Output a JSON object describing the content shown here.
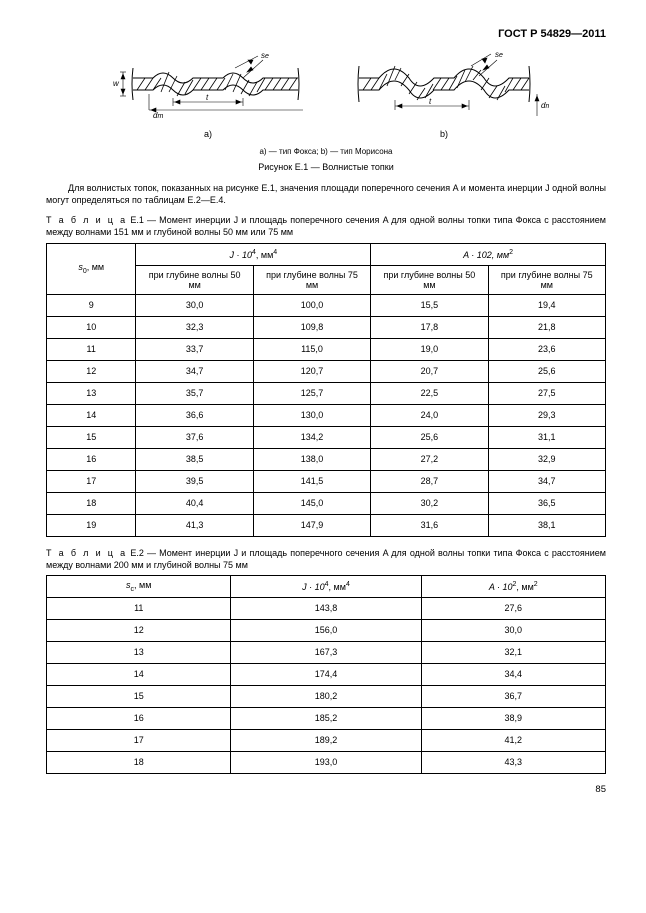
{
  "header": {
    "code": "ГОСТ Р 54829—2011"
  },
  "figure": {
    "a_label": "a)",
    "b_label": "b)",
    "note": "a) — тип Фокса; b) — тип Морисона",
    "title": "Рисунок Е.1 — Волнистые топки",
    "sym_w": "w",
    "sym_dm": "d",
    "sym_dm_sub": "m",
    "sym_t": "t",
    "sym_se": "s",
    "sym_se_sub": "e"
  },
  "para1": "Для волнистых топок, показанных на рисунке Е.1, значения площади поперечного сечения A и момента инерции J одной волны могут определяться по таблицам Е.2—Е.4.",
  "table1": {
    "caption_lead": "Т а б л и ц а",
    "caption": "  Е.1 — Момент инерции J и площадь поперечного сечения A для одной волны топки типа Фокса с расстоянием между волнами 151 мм и глубиной волны 50 мм или 75 мм",
    "h_s0": "s",
    "h_s0_sub": "0",
    "h_s0_unit": ", мм",
    "h_J": "J · 10",
    "h_J_sup": "4",
    "h_J_unit": ", мм",
    "h_J_unit_sup": "4",
    "h_A": "A · 102, мм",
    "h_A_sup": "2",
    "sub50": "при глубине волны 50 мм",
    "sub75": "при глубине волны 75 мм",
    "rows": [
      {
        "s": "9",
        "j50": "30,0",
        "j75": "100,0",
        "a50": "15,5",
        "a75": "19,4"
      },
      {
        "s": "10",
        "j50": "32,3",
        "j75": "109,8",
        "a50": "17,8",
        "a75": "21,8"
      },
      {
        "s": "11",
        "j50": "33,7",
        "j75": "115,0",
        "a50": "19,0",
        "a75": "23,6"
      },
      {
        "s": "12",
        "j50": "34,7",
        "j75": "120,7",
        "a50": "20,7",
        "a75": "25,6"
      },
      {
        "s": "13",
        "j50": "35,7",
        "j75": "125,7",
        "a50": "22,5",
        "a75": "27,5"
      },
      {
        "s": "14",
        "j50": "36,6",
        "j75": "130,0",
        "a50": "24,0",
        "a75": "29,3"
      },
      {
        "s": "15",
        "j50": "37,6",
        "j75": "134,2",
        "a50": "25,6",
        "a75": "31,1"
      },
      {
        "s": "16",
        "j50": "38,5",
        "j75": "138,0",
        "a50": "27,2",
        "a75": "32,9"
      },
      {
        "s": "17",
        "j50": "39,5",
        "j75": "141,5",
        "a50": "28,7",
        "a75": "34,7"
      },
      {
        "s": "18",
        "j50": "40,4",
        "j75": "145,0",
        "a50": "30,2",
        "a75": "36,5"
      },
      {
        "s": "19",
        "j50": "41,3",
        "j75": "147,9",
        "a50": "31,6",
        "a75": "38,1"
      }
    ]
  },
  "table2": {
    "caption_lead": "Т а б л и ц а",
    "caption": "  Е.2 — Момент инерции J и площадь поперечного сечения A для одной волны топки типа Фокса с расстоянием между волнами 200 мм и глубиной волны 75 мм",
    "h_s": "s",
    "h_s_sub": "c",
    "h_s_unit": ", мм",
    "h_J": "J · 10",
    "h_J_sup": "4",
    "h_J_unit": ", мм",
    "h_J_unit_sup": "4",
    "h_A": "A · 10",
    "h_A_sup1": "2",
    "h_A_unit": ", мм",
    "h_A_sup2": "2",
    "rows": [
      {
        "s": "11",
        "j": "143,8",
        "a": "27,6"
      },
      {
        "s": "12",
        "j": "156,0",
        "a": "30,0"
      },
      {
        "s": "13",
        "j": "167,3",
        "a": "32,1"
      },
      {
        "s": "14",
        "j": "174,4",
        "a": "34,4"
      },
      {
        "s": "15",
        "j": "180,2",
        "a": "36,7"
      },
      {
        "s": "16",
        "j": "185,2",
        "a": "38,9"
      },
      {
        "s": "17",
        "j": "189,2",
        "a": "41,2"
      },
      {
        "s": "18",
        "j": "193,0",
        "a": "43,3"
      }
    ]
  },
  "pagenum": "85"
}
